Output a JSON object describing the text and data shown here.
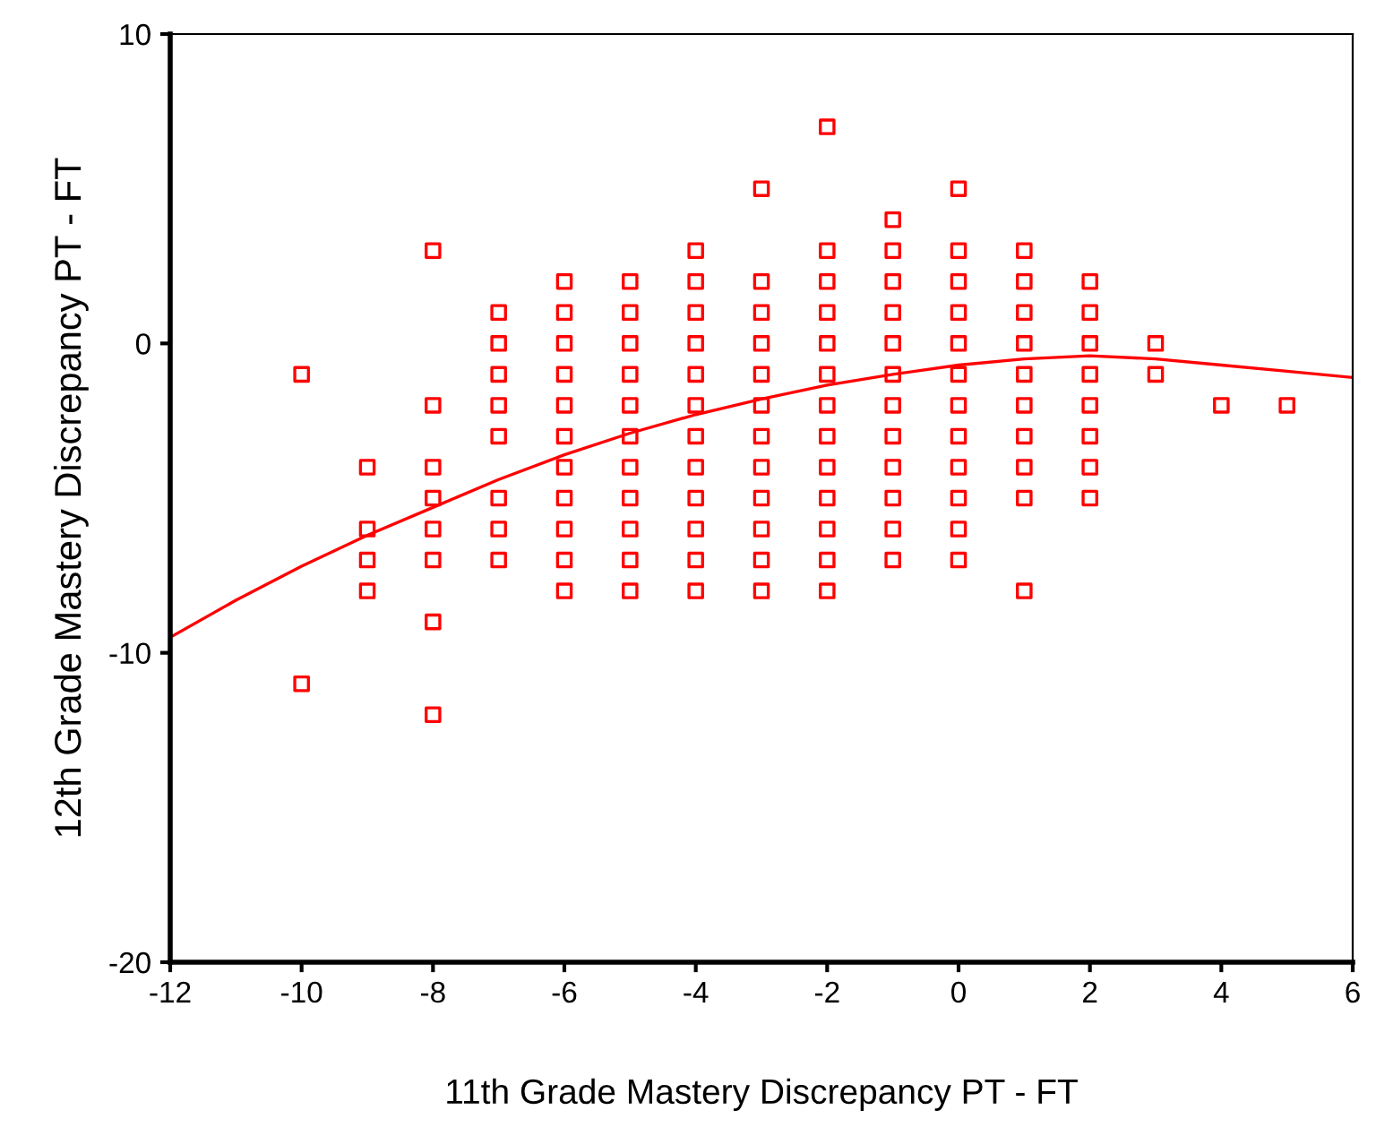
{
  "chart_data": {
    "type": "scatter",
    "xlabel": "11th Grade Mastery Discrepancy PT - FT",
    "ylabel": "12th Grade Mastery Discrepancy PT - FT",
    "xlim": [
      -12,
      6
    ],
    "xticks": [
      -12,
      -10,
      -8,
      -6,
      -4,
      -2,
      0,
      2,
      4,
      6
    ],
    "ylim": [
      -20,
      10
    ],
    "yticks": [
      -20,
      -10,
      0,
      10
    ],
    "grid": false,
    "series": [
      {
        "color": "#ff0000",
        "marker": "square",
        "x": [
          -10,
          -10,
          -9,
          -9,
          -9,
          -9,
          -8,
          -8,
          -8,
          -8,
          -8,
          -8,
          -8,
          -8,
          -7,
          -7,
          -7,
          -7,
          -7,
          -7,
          -7,
          -7,
          -6,
          -6,
          -6,
          -6,
          -6,
          -6,
          -6,
          -6,
          -6,
          -6,
          -6,
          -5,
          -5,
          -5,
          -5,
          -5,
          -5,
          -5,
          -5,
          -5,
          -5,
          -5,
          -4,
          -4,
          -4,
          -4,
          -4,
          -4,
          -4,
          -4,
          -4,
          -4,
          -4,
          -4,
          -3,
          -3,
          -3,
          -3,
          -3,
          -3,
          -3,
          -3,
          -3,
          -3,
          -3,
          -3,
          -2,
          -2,
          -2,
          -2,
          -2,
          -2,
          -2,
          -2,
          -2,
          -2,
          -2,
          -2,
          -2,
          -1,
          -1,
          -1,
          -1,
          -1,
          -1,
          -1,
          -1,
          -1,
          -1,
          -1,
          -1,
          0,
          0,
          0,
          0,
          0,
          0,
          0,
          0,
          0,
          0,
          0,
          0,
          1,
          1,
          1,
          1,
          1,
          1,
          1,
          1,
          1,
          1,
          2,
          2,
          2,
          2,
          2,
          2,
          2,
          2,
          3,
          3,
          4,
          5
        ],
        "values": [
          -1,
          -11,
          -4,
          -6,
          -7,
          -8,
          3,
          -2,
          -4,
          -5,
          -6,
          -7,
          -9,
          -12,
          1,
          0,
          -1,
          -2,
          -3,
          -5,
          -6,
          -7,
          2,
          1,
          0,
          -1,
          -2,
          -3,
          -4,
          -5,
          -6,
          -7,
          -8,
          2,
          1,
          0,
          -1,
          -2,
          -3,
          -4,
          -5,
          -6,
          -7,
          -8,
          3,
          2,
          1,
          0,
          -1,
          -2,
          -3,
          -4,
          -5,
          -6,
          -7,
          -8,
          5,
          2,
          1,
          0,
          -1,
          -2,
          -3,
          -4,
          -5,
          -6,
          -7,
          -8,
          7,
          3,
          2,
          1,
          0,
          -1,
          -2,
          -3,
          -4,
          -5,
          -6,
          -7,
          -8,
          4,
          3,
          2,
          1,
          0,
          -1,
          -2,
          -3,
          -4,
          -5,
          -6,
          -7,
          5,
          3,
          2,
          1,
          0,
          -1,
          -2,
          -3,
          -4,
          -5,
          -6,
          -7,
          3,
          2,
          1,
          0,
          -1,
          -2,
          -3,
          -4,
          -5,
          -8,
          2,
          1,
          0,
          -1,
          -2,
          -3,
          -4,
          -5,
          0,
          -1,
          -2,
          -2
        ]
      },
      {
        "type": "line",
        "color": "#ff0000",
        "line_style": "solid",
        "x": [
          -12,
          -11,
          -10,
          -9,
          -8,
          -7,
          -6,
          -5,
          -4,
          -3,
          -2,
          -1,
          0,
          1,
          2,
          3,
          4,
          5,
          6
        ],
        "values": [
          -9.5,
          -8.3,
          -7.2,
          -6.2,
          -5.3,
          -4.4,
          -3.6,
          -2.9,
          -2.3,
          -1.8,
          -1.35,
          -1.0,
          -0.7,
          -0.5,
          -0.4,
          -0.5,
          -0.7,
          -0.9,
          -1.1
        ]
      }
    ]
  }
}
